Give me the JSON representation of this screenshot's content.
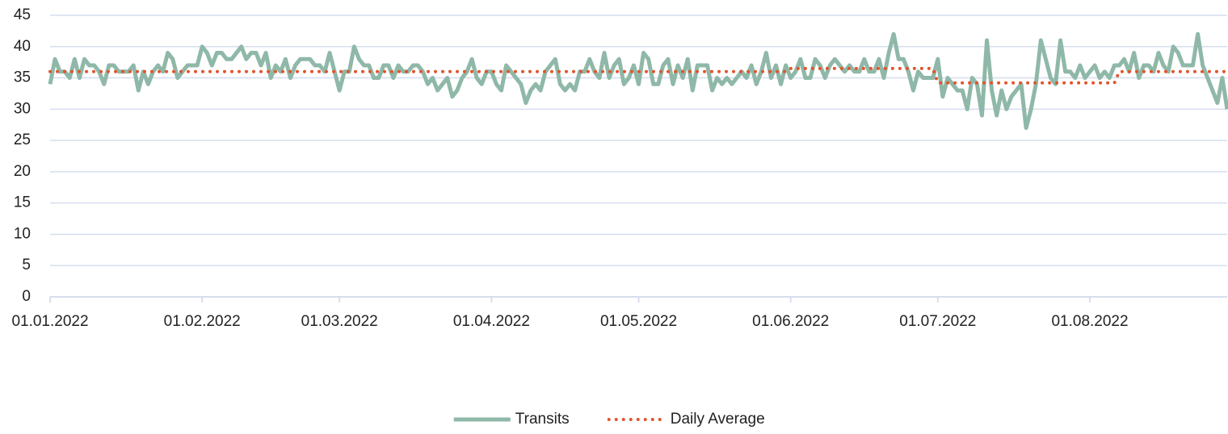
{
  "chart_data": {
    "type": "line",
    "x": [
      "01.01.2022",
      "02.01.2022",
      "03.01.2022",
      "04.01.2022",
      "05.01.2022",
      "06.01.2022",
      "07.01.2022",
      "08.01.2022",
      "09.01.2022",
      "10.01.2022",
      "11.01.2022",
      "12.01.2022",
      "13.01.2022",
      "14.01.2022",
      "15.01.2022",
      "16.01.2022",
      "17.01.2022",
      "18.01.2022",
      "19.01.2022",
      "20.01.2022",
      "21.01.2022",
      "22.01.2022",
      "23.01.2022",
      "24.01.2022",
      "25.01.2022",
      "26.01.2022",
      "27.01.2022",
      "28.01.2022",
      "29.01.2022",
      "30.01.2022",
      "31.01.2022",
      "01.02.2022",
      "02.02.2022",
      "03.02.2022",
      "04.02.2022",
      "05.02.2022",
      "06.02.2022",
      "07.02.2022",
      "08.02.2022",
      "09.02.2022",
      "10.02.2022",
      "11.02.2022",
      "12.02.2022",
      "13.02.2022",
      "14.02.2022",
      "15.02.2022",
      "16.02.2022",
      "17.02.2022",
      "18.02.2022",
      "19.02.2022",
      "20.02.2022",
      "21.02.2022",
      "22.02.2022",
      "23.02.2022",
      "24.02.2022",
      "25.02.2022",
      "26.02.2022",
      "27.02.2022",
      "28.02.2022",
      "01.03.2022",
      "02.03.2022",
      "03.03.2022",
      "04.03.2022",
      "05.03.2022",
      "06.03.2022",
      "07.03.2022",
      "08.03.2022",
      "09.03.2022",
      "10.03.2022",
      "11.03.2022",
      "12.03.2022",
      "13.03.2022",
      "14.03.2022",
      "15.03.2022",
      "16.03.2022",
      "17.03.2022",
      "18.03.2022",
      "19.03.2022",
      "20.03.2022",
      "21.03.2022",
      "22.03.2022",
      "23.03.2022",
      "24.03.2022",
      "25.03.2022",
      "26.03.2022",
      "27.03.2022",
      "28.03.2022",
      "29.03.2022",
      "30.03.2022",
      "31.03.2022",
      "01.04.2022",
      "02.04.2022",
      "03.04.2022",
      "04.04.2022",
      "05.04.2022",
      "06.04.2022",
      "07.04.2022",
      "08.04.2022",
      "09.04.2022",
      "10.04.2022",
      "11.04.2022",
      "12.04.2022",
      "13.04.2022",
      "14.04.2022",
      "15.04.2022",
      "16.04.2022",
      "17.04.2022",
      "18.04.2022",
      "19.04.2022",
      "20.04.2022",
      "21.04.2022",
      "22.04.2022",
      "23.04.2022",
      "24.04.2022",
      "25.04.2022",
      "26.04.2022",
      "27.04.2022",
      "28.04.2022",
      "29.04.2022",
      "30.04.2022",
      "01.05.2022",
      "02.05.2022",
      "03.05.2022",
      "04.05.2022",
      "05.05.2022",
      "06.05.2022",
      "07.05.2022",
      "08.05.2022",
      "09.05.2022",
      "10.05.2022",
      "11.05.2022",
      "12.05.2022",
      "13.05.2022",
      "14.05.2022",
      "15.05.2022",
      "16.05.2022",
      "17.05.2022",
      "18.05.2022",
      "19.05.2022",
      "20.05.2022",
      "21.05.2022",
      "22.05.2022",
      "23.05.2022",
      "24.05.2022",
      "25.05.2022",
      "26.05.2022",
      "27.05.2022",
      "28.05.2022",
      "29.05.2022",
      "30.05.2022",
      "31.05.2022",
      "01.06.2022",
      "02.06.2022",
      "03.06.2022",
      "04.06.2022",
      "05.06.2022",
      "06.06.2022",
      "07.06.2022",
      "08.06.2022",
      "09.06.2022",
      "10.06.2022",
      "11.06.2022",
      "12.06.2022",
      "13.06.2022",
      "14.06.2022",
      "15.06.2022",
      "16.06.2022",
      "17.06.2022",
      "18.06.2022",
      "19.06.2022",
      "20.06.2022",
      "21.06.2022",
      "22.06.2022",
      "23.06.2022",
      "24.06.2022",
      "25.06.2022",
      "26.06.2022",
      "27.06.2022",
      "28.06.2022",
      "29.06.2022",
      "30.06.2022",
      "01.07.2022",
      "02.07.2022",
      "03.07.2022",
      "04.07.2022",
      "05.07.2022",
      "06.07.2022",
      "07.07.2022",
      "08.07.2022",
      "09.07.2022",
      "10.07.2022",
      "11.07.2022",
      "12.07.2022",
      "13.07.2022",
      "14.07.2022",
      "15.07.2022",
      "16.07.2022",
      "17.07.2022",
      "18.07.2022",
      "19.07.2022",
      "20.07.2022",
      "21.07.2022",
      "22.07.2022",
      "23.07.2022",
      "24.07.2022",
      "25.07.2022",
      "26.07.2022",
      "27.07.2022",
      "28.07.2022",
      "29.07.2022",
      "30.07.2022",
      "31.07.2022",
      "01.08.2022",
      "02.08.2022",
      "03.08.2022",
      "04.08.2022",
      "05.08.2022",
      "06.08.2022",
      "07.08.2022",
      "08.08.2022",
      "09.08.2022",
      "10.08.2022",
      "11.08.2022",
      "12.08.2022",
      "13.08.2022",
      "14.08.2022",
      "15.08.2022",
      "16.08.2022",
      "17.08.2022",
      "18.08.2022",
      "19.08.2022",
      "20.08.2022",
      "21.08.2022",
      "22.08.2022",
      "23.08.2022",
      "24.08.2022",
      "25.08.2022",
      "26.08.2022",
      "27.08.2022",
      "28.08.2022",
      "29.08.2022"
    ],
    "series": [
      {
        "name": "Transits",
        "color": "#8fb8a8",
        "style": "solid",
        "values": [
          34,
          38,
          36,
          36,
          35,
          38,
          35,
          38,
          37,
          37,
          36,
          34,
          37,
          37,
          36,
          36,
          36,
          37,
          33,
          36,
          34,
          36,
          37,
          36,
          39,
          38,
          35,
          36,
          37,
          37,
          37,
          40,
          39,
          37,
          39,
          39,
          38,
          38,
          39,
          40,
          38,
          39,
          39,
          37,
          39,
          35,
          37,
          36,
          38,
          35,
          37,
          38,
          38,
          38,
          37,
          37,
          36,
          39,
          36,
          33,
          36,
          36,
          40,
          38,
          37,
          37,
          35,
          35,
          37,
          37,
          35,
          37,
          36,
          36,
          37,
          37,
          36,
          34,
          35,
          33,
          34,
          35,
          32,
          33,
          35,
          36,
          38,
          35,
          34,
          36,
          36,
          34,
          33,
          37,
          36,
          35,
          34,
          31,
          33,
          34,
          33,
          36,
          37,
          38,
          34,
          33,
          34,
          33,
          36,
          36,
          38,
          36,
          35,
          39,
          35,
          37,
          38,
          34,
          35,
          37,
          34,
          39,
          38,
          34,
          34,
          37,
          38,
          34,
          37,
          35,
          38,
          33,
          37,
          37,
          37,
          33,
          35,
          34,
          35,
          34,
          35,
          36,
          35,
          37,
          34,
          36,
          39,
          35,
          37,
          34,
          37,
          35,
          36,
          38,
          35,
          35,
          38,
          37,
          35,
          37,
          38,
          37,
          36,
          37,
          36,
          36,
          38,
          36,
          36,
          38,
          35,
          39,
          42,
          38,
          38,
          36,
          33,
          36,
          35,
          35,
          35,
          38,
          32,
          35,
          34,
          33,
          33,
          30,
          35,
          34,
          29,
          41,
          33,
          29,
          33,
          30,
          32,
          33,
          34,
          27,
          30,
          34,
          41,
          38,
          35,
          34,
          41,
          36,
          36,
          35,
          37,
          35,
          36,
          37,
          35,
          36,
          35,
          37,
          37,
          38,
          36,
          39,
          35,
          37,
          37,
          36,
          39,
          37,
          36,
          40,
          39,
          37,
          37,
          37,
          42,
          37,
          35,
          33,
          31,
          35,
          30
        ]
      },
      {
        "name": "Daily Average",
        "color": "#e2542c",
        "style": "dotted",
        "values": [
          36,
          36,
          36,
          36,
          36,
          36,
          36,
          36,
          36,
          36,
          36,
          36,
          36,
          36,
          36,
          36,
          36,
          36,
          36,
          36,
          36,
          36,
          36,
          36,
          36,
          36,
          36,
          36,
          36,
          36,
          36,
          36,
          36,
          36,
          36,
          36,
          36,
          36,
          36,
          36,
          36,
          36,
          36,
          36,
          36,
          36,
          36,
          36,
          36,
          36,
          36,
          36,
          36,
          36,
          36,
          36,
          36,
          36,
          36,
          36,
          36,
          36,
          36,
          36,
          36,
          36,
          36,
          36,
          36,
          36,
          36,
          36,
          36,
          36,
          36,
          36,
          36,
          36,
          36,
          36,
          36,
          36,
          36,
          36,
          36,
          36,
          36,
          36,
          36,
          36,
          36,
          36,
          36,
          36,
          36,
          36,
          36,
          36,
          36,
          36,
          36,
          36,
          36,
          36,
          36,
          36,
          36,
          36,
          36,
          36,
          36,
          36,
          36,
          36,
          36,
          36,
          36,
          36,
          36,
          36,
          36,
          36,
          36,
          36,
          36,
          36,
          36,
          36,
          36,
          36,
          36,
          36,
          36,
          36,
          36,
          36,
          36,
          36,
          36,
          36,
          36,
          36,
          36,
          36,
          36,
          36,
          36,
          36,
          36,
          36,
          36,
          36.5,
          36.5,
          36.5,
          36.5,
          36.5,
          36.5,
          36.5,
          36.5,
          36.5,
          36.5,
          36.5,
          36.5,
          36.5,
          36.5,
          36.5,
          36.5,
          36.5,
          36.5,
          36.5,
          36.5,
          36.5,
          36.5,
          36.5,
          36.5,
          36.5,
          36.5,
          36.5,
          36.5,
          36.5,
          36.5,
          34.2,
          34.2,
          34.2,
          34.2,
          34.2,
          34.2,
          34.2,
          34.2,
          34.2,
          34.2,
          34.2,
          34.2,
          34.2,
          34.2,
          34.2,
          34.2,
          34.2,
          34.2,
          34.2,
          34.2,
          34.2,
          34.2,
          34.2,
          34.2,
          34.2,
          34.2,
          34.2,
          34.2,
          34.2,
          34.2,
          34.2,
          34.2,
          34.2,
          34.2,
          34.2,
          34.2,
          34.2,
          36,
          36,
          36,
          36,
          36,
          36,
          36,
          36,
          36,
          36,
          36,
          36,
          36,
          36,
          36,
          36,
          36,
          36,
          36,
          36,
          36,
          36,
          36
        ]
      }
    ],
    "xlim": [
      "01.01.2022",
      "29.08.2022"
    ],
    "xticks": [
      "01.01.2022",
      "01.02.2022",
      "01.03.2022",
      "01.04.2022",
      "01.05.2022",
      "01.06.2022",
      "01.07.2022",
      "01.08.2022"
    ],
    "ylim": [
      0,
      45
    ],
    "yticks": [
      0,
      5,
      10,
      15,
      20,
      25,
      30,
      35,
      40,
      45
    ],
    "grid": true,
    "legend": "bottom"
  }
}
